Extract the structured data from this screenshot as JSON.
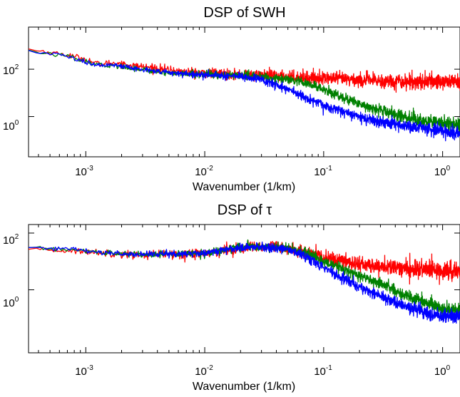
{
  "chart_data": [
    {
      "type": "line",
      "title": "DSP of SWH",
      "xlabel": "Wavenumber (1/km)",
      "ylabel": "",
      "xscale": "log",
      "yscale": "log",
      "xlim": [
        0.00033,
        1.4
      ],
      "ylim": [
        0.02,
        6000
      ],
      "grid": false,
      "xticks": [
        {
          "base": "10",
          "exp": "-3",
          "value": 0.001
        },
        {
          "base": "10",
          "exp": "-2",
          "value": 0.01
        },
        {
          "base": "10",
          "exp": "-1",
          "value": 0.1
        },
        {
          "base": "10",
          "exp": "0",
          "value": 1
        }
      ],
      "yticks": [
        {
          "base": "10",
          "exp": "2",
          "value": 100
        },
        {
          "base": "10",
          "exp": "0",
          "value": 1
        }
      ],
      "series": [
        {
          "color": "#ff0000",
          "noise": 0.18,
          "x": [
            0.00033,
            0.0007,
            0.001,
            0.0013,
            0.0018,
            0.0025,
            0.004,
            0.006,
            0.01,
            0.02,
            0.03,
            0.05,
            0.07,
            0.1,
            0.15,
            0.2,
            0.3,
            0.5,
            0.8,
            1.0,
            1.4
          ],
          "y": [
            700,
            400,
            260,
            160,
            190,
            140,
            110,
            80,
            70,
            60,
            55,
            50,
            45,
            42,
            38,
            35,
            32,
            30,
            30,
            30,
            30
          ]
        },
        {
          "color": "#008000",
          "noise": 0.14,
          "x": [
            0.00033,
            0.0007,
            0.001,
            0.0013,
            0.0018,
            0.0025,
            0.004,
            0.006,
            0.01,
            0.02,
            0.03,
            0.05,
            0.07,
            0.1,
            0.15,
            0.2,
            0.3,
            0.5,
            0.8,
            1.0,
            1.4
          ],
          "y": [
            600,
            350,
            200,
            150,
            140,
            110,
            80,
            65,
            60,
            55,
            48,
            35,
            25,
            14,
            6,
            3.5,
            1.8,
            0.9,
            0.6,
            0.5,
            0.45
          ]
        },
        {
          "color": "#0000ff",
          "noise": 0.14,
          "x": [
            0.00033,
            0.0007,
            0.001,
            0.0013,
            0.0018,
            0.0025,
            0.004,
            0.006,
            0.01,
            0.02,
            0.03,
            0.05,
            0.07,
            0.1,
            0.15,
            0.2,
            0.3,
            0.5,
            0.8,
            1.0,
            1.4
          ],
          "y": [
            600,
            350,
            200,
            150,
            140,
            110,
            80,
            65,
            60,
            50,
            35,
            15,
            6,
            3,
            1.6,
            1.0,
            0.6,
            0.4,
            0.28,
            0.24,
            0.2
          ]
        }
      ]
    },
    {
      "type": "line",
      "title": "DSP of τ",
      "xlabel": "Wavenumber (1/km)",
      "ylabel": "",
      "xscale": "log",
      "yscale": "log",
      "xlim": [
        0.00033,
        1.4
      ],
      "ylim": [
        0.006,
        200
      ],
      "grid": false,
      "xticks": [
        {
          "base": "10",
          "exp": "-3",
          "value": 0.001
        },
        {
          "base": "10",
          "exp": "-2",
          "value": 0.01
        },
        {
          "base": "10",
          "exp": "-1",
          "value": 0.1
        },
        {
          "base": "10",
          "exp": "0",
          "value": 1
        }
      ],
      "yticks": [
        {
          "base": "10",
          "exp": "2",
          "value": 100
        },
        {
          "base": "10",
          "exp": "0",
          "value": 1
        }
      ],
      "series": [
        {
          "color": "#ff0000",
          "noise": 0.16,
          "x": [
            0.00033,
            0.0007,
            0.001,
            0.0015,
            0.002,
            0.003,
            0.005,
            0.008,
            0.01,
            0.015,
            0.02,
            0.03,
            0.05,
            0.07,
            0.1,
            0.15,
            0.2,
            0.3,
            0.5,
            0.8,
            1.0,
            1.4
          ],
          "y": [
            25,
            24,
            22,
            20,
            18,
            17,
            18,
            19,
            20,
            25,
            30,
            33,
            28,
            20,
            14,
            10,
            8,
            6.5,
            5.5,
            5,
            4.8,
            4.5
          ]
        },
        {
          "color": "#008000",
          "noise": 0.12,
          "x": [
            0.00033,
            0.0007,
            0.001,
            0.0015,
            0.002,
            0.003,
            0.005,
            0.008,
            0.01,
            0.015,
            0.02,
            0.03,
            0.05,
            0.07,
            0.1,
            0.15,
            0.2,
            0.3,
            0.5,
            0.8,
            1.0,
            1.4
          ],
          "y": [
            30,
            26,
            23,
            20,
            18,
            18,
            18,
            19,
            20,
            26,
            32,
            34,
            28,
            19,
            10,
            5,
            3,
            1.6,
            0.6,
            0.3,
            0.22,
            0.18
          ]
        },
        {
          "color": "#0000ff",
          "noise": 0.12,
          "x": [
            0.00033,
            0.0007,
            0.001,
            0.0015,
            0.002,
            0.003,
            0.005,
            0.008,
            0.01,
            0.015,
            0.02,
            0.03,
            0.05,
            0.07,
            0.1,
            0.15,
            0.2,
            0.3,
            0.5,
            0.8,
            1.0,
            1.4
          ],
          "y": [
            32,
            27,
            24,
            20,
            18,
            18,
            18,
            19,
            20,
            26,
            32,
            34,
            26,
            15,
            6,
            2.5,
            1.2,
            0.6,
            0.25,
            0.14,
            0.13,
            0.12
          ]
        }
      ]
    }
  ]
}
